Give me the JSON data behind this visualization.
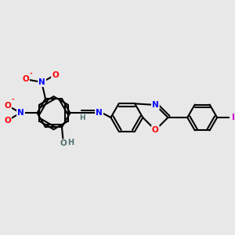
{
  "background_color": "#e8e8e8",
  "bond_color": "#000000",
  "atom_colors": {
    "N": "#0000ff",
    "O": "#ff0000",
    "H": "#507070",
    "I": "#cc00cc",
    "C": "#000000"
  },
  "figsize": [
    3.0,
    3.0
  ],
  "dpi": 100
}
